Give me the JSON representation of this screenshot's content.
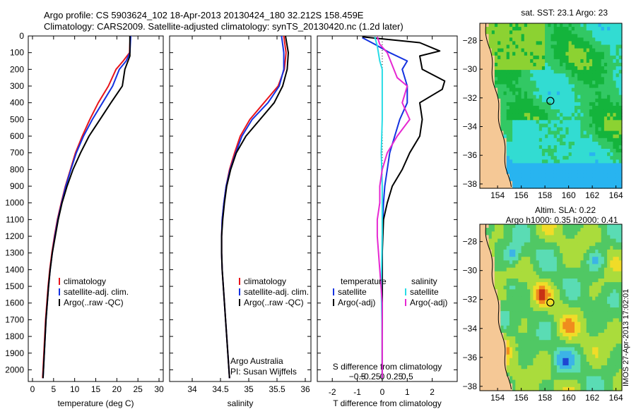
{
  "header": {
    "line1": "Argo profile: CS 5903624_102 18-Apr-2013 20130424_180 32.212S 158.459E",
    "line2": "Climatology: CARS2009. Satellite-adjusted climatology: synTS_20130420.nc (1.2d later)"
  },
  "stamp": "IMOS 27-Apr-2013 17:02:01",
  "colors": {
    "climatology": "#e8141b",
    "satellite": "#1432e0",
    "argo": "#000000",
    "satellite_salinity": "#28dce6",
    "argo_salinity": "#e628d2"
  },
  "chart_data": [
    {
      "type": "line",
      "name": "temperature-profile",
      "xlabel": "temperature (deg C)",
      "ylabel": "",
      "xlim": [
        -1,
        31
      ],
      "ylim": [
        2070,
        0
      ],
      "xticks": [
        0,
        5,
        10,
        15,
        20,
        25,
        30
      ],
      "yticks": [
        0,
        100,
        200,
        300,
        400,
        500,
        600,
        700,
        800,
        900,
        1000,
        1100,
        1200,
        1300,
        1400,
        1500,
        1600,
        1700,
        1800,
        1900,
        2000
      ],
      "legend": [
        "climatology",
        "satellite-adj. clim.",
        "Argo(..raw -QC)"
      ],
      "legend_position": "lower-center",
      "series": [
        {
          "name": "climatology",
          "color": "#e8141b",
          "points": [
            [
              23.2,
              0
            ],
            [
              23.1,
              50
            ],
            [
              23.0,
              100
            ],
            [
              21.5,
              150
            ],
            [
              19.8,
              200
            ],
            [
              18.0,
              300
            ],
            [
              15.6,
              400
            ],
            [
              13.6,
              500
            ],
            [
              11.8,
              600
            ],
            [
              10.2,
              700
            ],
            [
              9.0,
              800
            ],
            [
              7.8,
              900
            ],
            [
              6.8,
              1000
            ],
            [
              5.9,
              1100
            ],
            [
              5.2,
              1200
            ],
            [
              4.6,
              1300
            ],
            [
              4.1,
              1400
            ],
            [
              3.7,
              1500
            ],
            [
              3.4,
              1600
            ],
            [
              3.1,
              1700
            ],
            [
              2.9,
              1800
            ],
            [
              2.7,
              1900
            ],
            [
              2.5,
              2000
            ],
            [
              2.4,
              2050
            ]
          ]
        },
        {
          "name": "satellite-adj. clim.",
          "color": "#1432e0",
          "points": [
            [
              23.3,
              0
            ],
            [
              23.2,
              50
            ],
            [
              23.1,
              100
            ],
            [
              22.2,
              150
            ],
            [
              20.6,
              200
            ],
            [
              19.0,
              300
            ],
            [
              16.6,
              400
            ],
            [
              14.2,
              500
            ],
            [
              12.1,
              600
            ],
            [
              10.4,
              700
            ],
            [
              9.1,
              800
            ],
            [
              7.9,
              900
            ],
            [
              6.9,
              1000
            ],
            [
              6.0,
              1100
            ],
            [
              5.3,
              1200
            ],
            [
              4.7,
              1300
            ],
            [
              4.2,
              1400
            ],
            [
              3.8,
              1500
            ],
            [
              3.5,
              1600
            ],
            [
              3.2,
              1700
            ],
            [
              3.0,
              1800
            ],
            [
              2.8,
              1900
            ],
            [
              2.6,
              2000
            ],
            [
              2.5,
              2050
            ]
          ]
        },
        {
          "name": "Argo(..raw -QC)",
          "color": "#000000",
          "points": [
            [
              23.1,
              0
            ],
            [
              23.1,
              60
            ],
            [
              23.1,
              120
            ],
            [
              21.9,
              200
            ],
            [
              21.3,
              300
            ],
            [
              18.6,
              400
            ],
            [
              16.0,
              500
            ],
            [
              13.4,
              600
            ],
            [
              11.4,
              700
            ],
            [
              9.6,
              800
            ],
            [
              8.2,
              900
            ],
            [
              7.0,
              1000
            ],
            [
              6.1,
              1100
            ],
            [
              5.4,
              1200
            ],
            [
              4.7,
              1300
            ],
            [
              4.2,
              1400
            ],
            [
              3.8,
              1500
            ],
            [
              3.5,
              1600
            ],
            [
              3.2,
              1700
            ],
            [
              3.0,
              1800
            ],
            [
              2.8,
              1900
            ],
            [
              2.6,
              2000
            ],
            [
              2.5,
              2050
            ]
          ]
        }
      ]
    },
    {
      "type": "line",
      "name": "salinity-profile",
      "xlabel": "salinity",
      "ylabel": "",
      "xlim": [
        33.6,
        36.1
      ],
      "ylim": [
        2070,
        0
      ],
      "xticks": [
        34,
        34.5,
        35,
        35.5,
        36
      ],
      "legend": [
        "climatology",
        "satellite-adj. clim.",
        "Argo(..raw -QC)"
      ],
      "legend_position": "lower-center",
      "annotations": [
        "Argo Australia",
        "PI: Susan Wijffels"
      ],
      "series": [
        {
          "name": "climatology",
          "color": "#e8141b",
          "points": [
            [
              35.62,
              0
            ],
            [
              35.66,
              100
            ],
            [
              35.63,
              200
            ],
            [
              35.52,
              300
            ],
            [
              35.27,
              400
            ],
            [
              35.02,
              500
            ],
            [
              34.85,
              600
            ],
            [
              34.75,
              700
            ],
            [
              34.66,
              800
            ],
            [
              34.6,
              900
            ],
            [
              34.56,
              1000
            ],
            [
              34.53,
              1100
            ],
            [
              34.52,
              1200
            ],
            [
              34.52,
              1300
            ],
            [
              34.53,
              1400
            ],
            [
              34.55,
              1500
            ],
            [
              34.57,
              1600
            ],
            [
              34.59,
              1700
            ],
            [
              34.61,
              1800
            ],
            [
              34.63,
              1900
            ],
            [
              34.65,
              2000
            ],
            [
              34.66,
              2050
            ]
          ]
        },
        {
          "name": "satellite-adj. clim.",
          "color": "#1432e0",
          "points": [
            [
              35.58,
              0
            ],
            [
              35.62,
              100
            ],
            [
              35.62,
              200
            ],
            [
              35.54,
              300
            ],
            [
              35.34,
              400
            ],
            [
              35.06,
              500
            ],
            [
              34.88,
              600
            ],
            [
              34.77,
              700
            ],
            [
              34.67,
              800
            ],
            [
              34.6,
              900
            ],
            [
              34.56,
              1000
            ],
            [
              34.53,
              1100
            ],
            [
              34.52,
              1200
            ],
            [
              34.52,
              1300
            ],
            [
              34.53,
              1400
            ],
            [
              34.55,
              1500
            ],
            [
              34.57,
              1600
            ],
            [
              34.59,
              1700
            ],
            [
              34.61,
              1800
            ],
            [
              34.63,
              1900
            ],
            [
              34.65,
              2000
            ],
            [
              34.66,
              2050
            ]
          ]
        },
        {
          "name": "Argo(..raw -QC)",
          "color": "#000000",
          "points": [
            [
              35.65,
              0
            ],
            [
              35.7,
              100
            ],
            [
              35.68,
              200
            ],
            [
              35.6,
              300
            ],
            [
              35.45,
              400
            ],
            [
              35.2,
              500
            ],
            [
              34.95,
              600
            ],
            [
              34.78,
              700
            ],
            [
              34.68,
              800
            ],
            [
              34.61,
              900
            ],
            [
              34.57,
              1000
            ],
            [
              34.54,
              1100
            ],
            [
              34.52,
              1200
            ],
            [
              34.52,
              1300
            ],
            [
              34.53,
              1400
            ],
            [
              34.55,
              1500
            ],
            [
              34.57,
              1600
            ],
            [
              34.59,
              1700
            ],
            [
              34.61,
              1800
            ],
            [
              34.63,
              1900
            ],
            [
              34.65,
              2000
            ],
            [
              34.66,
              2050
            ]
          ]
        }
      ]
    },
    {
      "type": "line",
      "name": "difference-profile",
      "xlabel": "T difference from climatology",
      "xlabel_top": "S difference from climatology",
      "xlim": [
        -2.6,
        3.0
      ],
      "ylim": [
        2070,
        0
      ],
      "xticks": [
        -2,
        -1,
        0,
        1,
        2
      ],
      "xticks_s": [
        -0.5,
        -0.25,
        0,
        0.25,
        0.5
      ],
      "xticks_s_labels": [
        "−0.5",
        "−0.25",
        "0",
        "0.25",
        "0.5"
      ],
      "legend_left": [
        "temperature",
        "satellite",
        "Argo(-adj)"
      ],
      "legend_right": [
        "salinity",
        "satellite",
        "Argo(-adj)"
      ],
      "series": [
        {
          "name": "T satellite",
          "color": "#1432e0",
          "points": [
            [
              -0.8,
              10
            ],
            [
              -0.3,
              50
            ],
            [
              0.3,
              100
            ],
            [
              1.0,
              150
            ],
            [
              0.8,
              200
            ],
            [
              1.0,
              300
            ],
            [
              1.0,
              400
            ],
            [
              0.7,
              500
            ],
            [
              0.5,
              600
            ],
            [
              0.3,
              700
            ],
            [
              0.2,
              800
            ],
            [
              0.1,
              900
            ],
            [
              0.05,
              1000
            ],
            [
              0,
              1200
            ],
            [
              0,
              2050
            ]
          ]
        },
        {
          "name": "T Argo(-adj)",
          "color": "#000000",
          "points": [
            [
              -0.8,
              5
            ],
            [
              1.5,
              40
            ],
            [
              2.3,
              90
            ],
            [
              1.5,
              120
            ],
            [
              1.6,
              200
            ],
            [
              2.5,
              270
            ],
            [
              2.4,
              320
            ],
            [
              1.5,
              400
            ],
            [
              1.6,
              500
            ],
            [
              1.5,
              600
            ],
            [
              1.1,
              700
            ],
            [
              0.8,
              800
            ],
            [
              0.4,
              900
            ],
            [
              0.2,
              1000
            ],
            [
              0.05,
              1100
            ],
            [
              0,
              1300
            ],
            [
              0,
              2050
            ]
          ]
        },
        {
          "name": "S satellite",
          "color": "#28dce6",
          "points": [
            [
              -0.15,
              5
            ],
            [
              -0.1,
              60
            ],
            [
              -0.05,
              150
            ],
            [
              0,
              200
            ],
            [
              0,
              300
            ],
            [
              0,
              500
            ],
            [
              -0.02,
              700
            ],
            [
              0,
              900
            ],
            [
              0,
              1200
            ],
            [
              -0.02,
              1500
            ],
            [
              0,
              1800
            ],
            [
              0,
              2050
            ]
          ]
        },
        {
          "name": "S Argo(-adj)",
          "color": "#e628d2",
          "points": [
            [
              -0.1,
              5
            ],
            [
              -0.05,
              50
            ],
            [
              0.1,
              100
            ],
            [
              0.3,
              250
            ],
            [
              0.5,
              300
            ],
            [
              0.4,
              400
            ],
            [
              0.55,
              500
            ],
            [
              0.3,
              600
            ],
            [
              0.1,
              700
            ],
            [
              0,
              800
            ],
            [
              -0.05,
              900
            ],
            [
              -0.05,
              1000
            ],
            [
              -0.1,
              1100
            ],
            [
              -0.1,
              1200
            ],
            [
              -0.05,
              1400
            ],
            [
              0,
              1600
            ],
            [
              0,
              2050
            ]
          ]
        }
      ]
    },
    {
      "type": "heatmap",
      "name": "sst-map",
      "title": "sat. SST: 23.1  Argo: 23",
      "xlim": [
        152.5,
        164.5
      ],
      "ylim": [
        -38.3,
        -26.8
      ],
      "xticks": [
        154,
        156,
        158,
        160,
        162,
        164
      ],
      "yticks": [
        -28,
        -30,
        -32,
        -34,
        -36,
        -38
      ],
      "marker": {
        "lon": 158.46,
        "lat": -32.21
      }
    },
    {
      "type": "heatmap",
      "name": "sla-map",
      "title": "Altim. SLA: 0.22",
      "subtitle": "Argo h1000: 0.35 h2000: 0.41",
      "xlim": [
        152.5,
        164.5
      ],
      "ylim": [
        -38.3,
        -26.8
      ],
      "xticks": [
        154,
        156,
        158,
        160,
        162,
        164
      ],
      "yticks": [
        -28,
        -30,
        -32,
        -34,
        -36,
        -38
      ],
      "marker": {
        "lon": 158.46,
        "lat": -32.21
      }
    }
  ]
}
